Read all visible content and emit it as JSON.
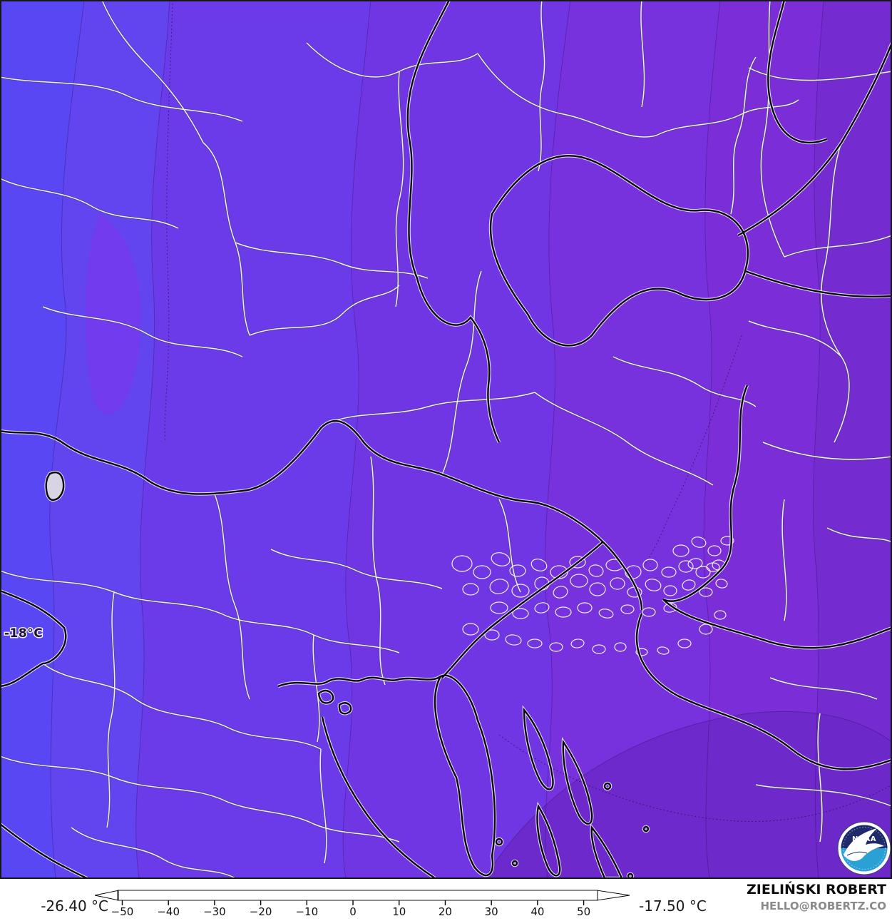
{
  "map": {
    "contour_label": "-18°C",
    "palette": {
      "band_blue_left": "#5847f2",
      "band_blue": "#6245ee",
      "band_violet": "#6b3be9",
      "band_violet_mid": "#7136e3",
      "band_purple": "#7732dd",
      "band_purple_right": "#7b2ed8",
      "band_purple_far": "#742cd1",
      "band_purple_dark": "#6b28c8",
      "pocket_bright": "#8132ee",
      "border_country": "#0a0812",
      "border_region": "#f0edf6"
    },
    "noaa_logo": {
      "word": "NOAA",
      "top_color": "#1f2a6a",
      "bottom_color": "#2aa0d5"
    }
  },
  "colorbar": {
    "min_label": "-26.40 °C",
    "max_label": "-17.50 °C",
    "unit": "°C",
    "range": [
      -51,
      53
    ],
    "tick_values": [
      -50,
      -40,
      -30,
      -20,
      -10,
      0,
      10,
      20,
      30,
      40,
      50
    ],
    "tick_labels": [
      "−50",
      "−40",
      "−30",
      "−20",
      "−10",
      "0",
      "10",
      "20",
      "30",
      "40",
      "50"
    ],
    "arrow_left_fill": "#f4efdc",
    "arrow_right_fill": "#ffffff",
    "stops": [
      [
        -51,
        "#f4efdc"
      ],
      [
        -50,
        "#e6dcc2"
      ],
      [
        -48,
        "#cbb795"
      ],
      [
        -46,
        "#a98c62"
      ],
      [
        -44,
        "#87613a"
      ],
      [
        -42,
        "#5e3b16"
      ],
      [
        -40,
        "#3a210a"
      ],
      [
        -38,
        "#200d12"
      ],
      [
        -36,
        "#2c0e4a"
      ],
      [
        -34,
        "#3d137f"
      ],
      [
        -32,
        "#4b1aa5"
      ],
      [
        -30,
        "#5a22c2"
      ],
      [
        -28,
        "#6429d8"
      ],
      [
        -26,
        "#6d30e8"
      ],
      [
        -24,
        "#7438f2"
      ],
      [
        -22,
        "#7a40f8"
      ],
      [
        -20,
        "#6f46f6"
      ],
      [
        -18,
        "#5a4cf4"
      ],
      [
        -16,
        "#455bf0"
      ],
      [
        -14,
        "#3f6eea"
      ],
      [
        -12,
        "#4384ee"
      ],
      [
        -10,
        "#46a0f2"
      ],
      [
        -8,
        "#63bdf4"
      ],
      [
        -6,
        "#a5dcf7"
      ],
      [
        -5,
        "#d9f1fa"
      ],
      [
        -4,
        "#b2ecf0"
      ],
      [
        -3,
        "#7ce2da"
      ],
      [
        -2,
        "#45d4bc"
      ],
      [
        0,
        "#16bd92"
      ],
      [
        2,
        "#12b97e"
      ],
      [
        4,
        "#1fbd62"
      ],
      [
        6,
        "#35c34a"
      ],
      [
        8,
        "#55ca34"
      ],
      [
        10,
        "#7dd324"
      ],
      [
        12,
        "#a3da1a"
      ],
      [
        14,
        "#c6e114"
      ],
      [
        16,
        "#e0e716"
      ],
      [
        18,
        "#eee81a"
      ],
      [
        20,
        "#f2dd12"
      ],
      [
        22,
        "#f4c60c"
      ],
      [
        24,
        "#f5ae07"
      ],
      [
        26,
        "#f59305"
      ],
      [
        28,
        "#f07903"
      ],
      [
        30,
        "#e55f02"
      ],
      [
        32,
        "#d54a01"
      ],
      [
        34,
        "#bd3800"
      ],
      [
        36,
        "#9e2600"
      ],
      [
        38,
        "#7a1600"
      ],
      [
        40,
        "#500a00"
      ],
      [
        42,
        "#2a0300"
      ],
      [
        44,
        "#151111"
      ],
      [
        46,
        "#2e2e2e"
      ],
      [
        48,
        "#565656"
      ],
      [
        50,
        "#7e7e7e"
      ],
      [
        52,
        "#a8a8a8"
      ],
      [
        53,
        "#c4c4c4"
      ]
    ]
  },
  "attribution": {
    "name": "ZIELIŃSKI ROBERT",
    "email": "HELLO@ROBERTZ.CO"
  }
}
